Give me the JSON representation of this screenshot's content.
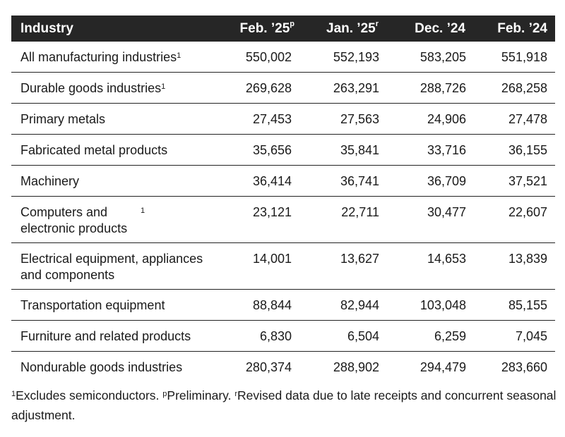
{
  "table": {
    "columns": [
      {
        "label": "Industry",
        "sup": ""
      },
      {
        "label": "Feb. ’25",
        "sup": "p"
      },
      {
        "label": "Jan. ’25",
        "sup": "r"
      },
      {
        "label": "Dec. ’24",
        "sup": ""
      },
      {
        "label": "Feb. ’24",
        "sup": ""
      }
    ],
    "rows": [
      {
        "label": "All manufacturing industries",
        "sup": "1",
        "values": [
          "550,002",
          "552,193",
          "583,205",
          "551,918"
        ]
      },
      {
        "label": "Durable goods industries",
        "sup": "1",
        "values": [
          "269,628",
          "263,291",
          "288,726",
          "268,258"
        ]
      },
      {
        "label": "Primary metals",
        "sup": "",
        "values": [
          "27,453",
          "27,563",
          "24,906",
          "27,478"
        ]
      },
      {
        "label": "Fabricated metal products",
        "sup": "",
        "values": [
          "35,656",
          "35,841",
          "33,716",
          "36,155"
        ]
      },
      {
        "label": "Machinery",
        "sup": "",
        "values": [
          "36,414",
          "36,741",
          "36,709",
          "37,521"
        ]
      },
      {
        "label": "Computers and electronic products",
        "sup": "1",
        "values": [
          "23,121",
          "22,711",
          "30,477",
          "22,607"
        ]
      },
      {
        "label": "Electrical equipment, appliances and components",
        "sup": "",
        "values": [
          "14,001",
          "13,627",
          "14,653",
          "13,839"
        ]
      },
      {
        "label": "Transportation equipment",
        "sup": "",
        "values": [
          "88,844",
          "82,944",
          "103,048",
          "85,155"
        ]
      },
      {
        "label": "Furniture and related products",
        "sup": "",
        "values": [
          "6,830",
          "6,504",
          "6,259",
          "7,045"
        ]
      },
      {
        "label": "Nondurable goods industries",
        "sup": "",
        "values": [
          "280,374",
          "288,902",
          "294,479",
          "283,660"
        ]
      }
    ],
    "header_bg": "#262626"
  },
  "footnote": {
    "items": [
      {
        "sup": "1",
        "text": "Excludes semiconductors. "
      },
      {
        "sup": "p",
        "text": "Preliminary. "
      },
      {
        "sup": "r",
        "text": "Revised data due to late receipts and concurrent seasonal adjustment."
      }
    ]
  }
}
